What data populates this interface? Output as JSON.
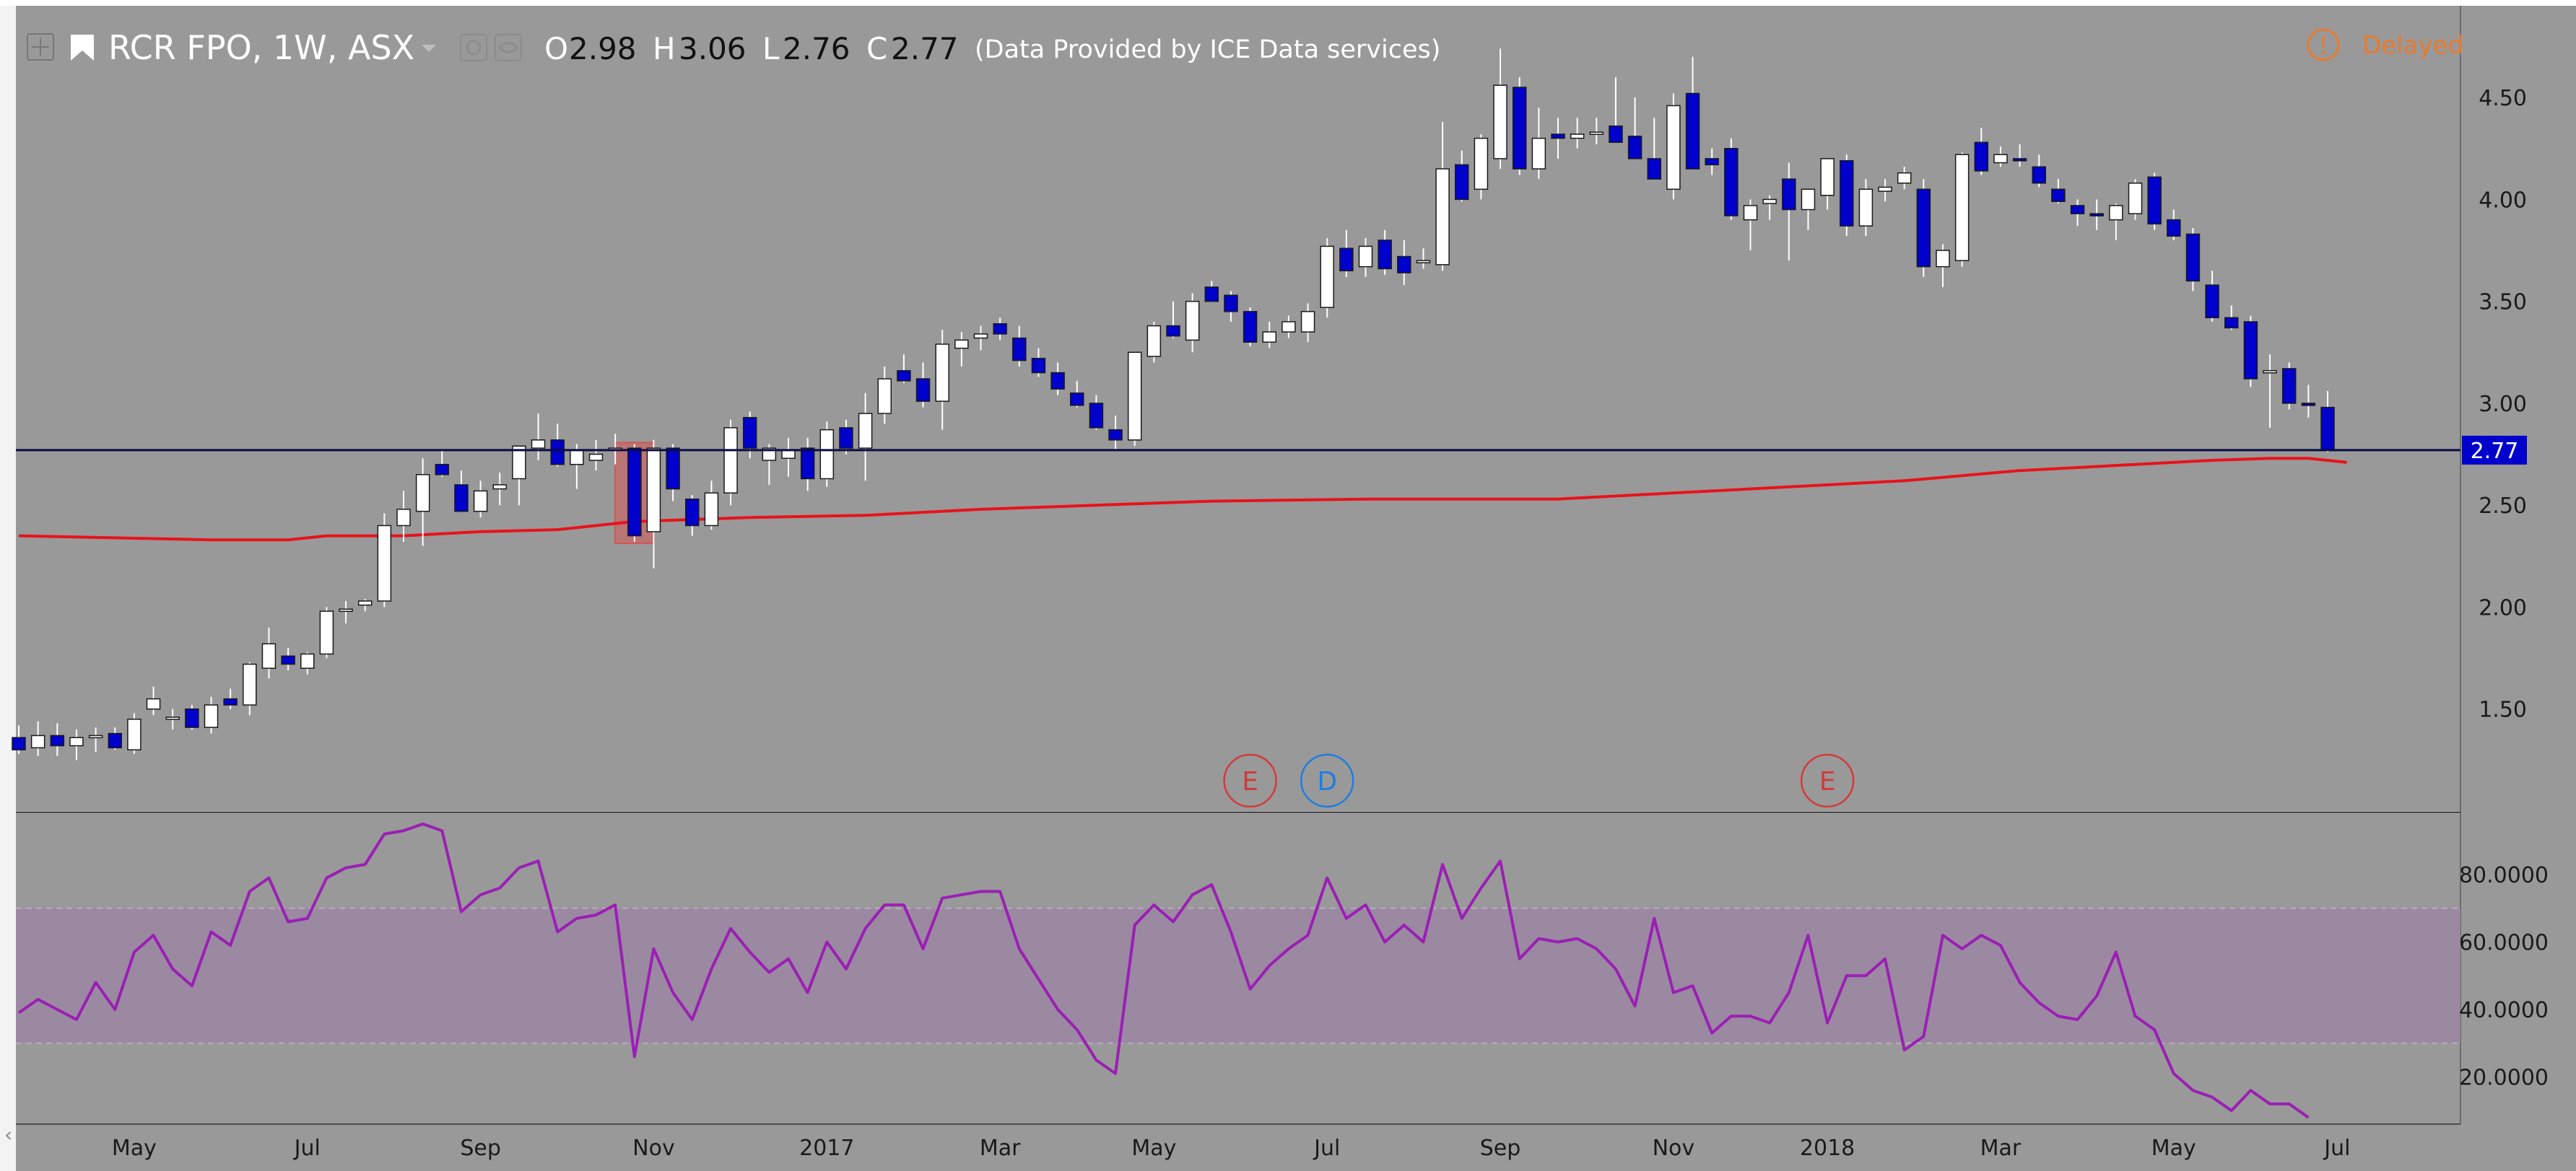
{
  "header": {
    "symbol": "RCR FPO, 1W, ASX",
    "o_label": "O",
    "o_value": "2.98",
    "h_label": "H",
    "h_value": "3.06",
    "l_label": "L",
    "l_value": "2.76",
    "c_label": "C",
    "c_value": "2.77",
    "provider": "(Data Provided by ICE Data services)",
    "delayed_label": "Delayed",
    "icons": [
      "plus-icon",
      "flag-icon",
      "dropdown-caret-icon",
      "settings-icon",
      "eye-icon",
      "warning-icon"
    ]
  },
  "colors": {
    "background": "#999999",
    "up_candle": "#ffffff",
    "down_candle": "#0000cc",
    "ma_line": "#e8121a",
    "rsi_line": "#9b1fb4",
    "rsi_band": "#9b86a3",
    "price_line": "#0b0b45",
    "price_tag": "#0000cc",
    "delayed": "#e87a2e",
    "event_e": "#d23a3a",
    "event_d": "#1e7ee0",
    "highlight": "#d45555"
  },
  "events": [
    {
      "label": "E",
      "index": 64
    },
    {
      "label": "D",
      "index": 68
    },
    {
      "label": "E",
      "index": 94
    }
  ],
  "chart_data": [
    {
      "type": "candlestick",
      "timeframe": "1W",
      "x_tick_labels": [
        "May",
        "Jul",
        "Sep",
        "Nov",
        "2017",
        "Mar",
        "May",
        "Jul",
        "Sep",
        "Nov",
        "2018",
        "Mar",
        "May",
        "Jul"
      ],
      "x_tick_indices": [
        6,
        15,
        24,
        33,
        42,
        51,
        59,
        68,
        77,
        86,
        94,
        103,
        112,
        120.5
      ],
      "y_tick_labels": [
        "4.50",
        "4.00",
        "3.50",
        "3.00",
        "2.50",
        "2.00",
        "1.50"
      ],
      "y_range": [
        1.0,
        4.95
      ],
      "last_price": 2.77,
      "last_price_label": "2.77",
      "highlight_candle_index": 32,
      "ohlc": [
        [
          1.36,
          1.42,
          1.28,
          1.3
        ],
        [
          1.31,
          1.44,
          1.27,
          1.37
        ],
        [
          1.37,
          1.43,
          1.27,
          1.32
        ],
        [
          1.32,
          1.4,
          1.25,
          1.36
        ],
        [
          1.36,
          1.41,
          1.29,
          1.37
        ],
        [
          1.38,
          1.41,
          1.3,
          1.31
        ],
        [
          1.3,
          1.48,
          1.28,
          1.45
        ],
        [
          1.5,
          1.61,
          1.47,
          1.55
        ],
        [
          1.45,
          1.5,
          1.4,
          1.46
        ],
        [
          1.5,
          1.52,
          1.4,
          1.41
        ],
        [
          1.41,
          1.56,
          1.38,
          1.52
        ],
        [
          1.55,
          1.6,
          1.5,
          1.52
        ],
        [
          1.52,
          1.73,
          1.47,
          1.72
        ],
        [
          1.7,
          1.9,
          1.65,
          1.82
        ],
        [
          1.76,
          1.8,
          1.69,
          1.72
        ],
        [
          1.7,
          1.78,
          1.67,
          1.77
        ],
        [
          1.77,
          2.0,
          1.75,
          1.98
        ],
        [
          1.98,
          2.03,
          1.92,
          1.99
        ],
        [
          2.01,
          2.04,
          1.98,
          2.03
        ],
        [
          2.03,
          2.46,
          2.0,
          2.4
        ],
        [
          2.4,
          2.57,
          2.32,
          2.48
        ],
        [
          2.47,
          2.73,
          2.3,
          2.65
        ],
        [
          2.7,
          2.77,
          2.64,
          2.65
        ],
        [
          2.6,
          2.67,
          2.47,
          2.47
        ],
        [
          2.47,
          2.62,
          2.44,
          2.57
        ],
        [
          2.58,
          2.66,
          2.5,
          2.6
        ],
        [
          2.63,
          2.76,
          2.5,
          2.79
        ],
        [
          2.78,
          2.95,
          2.72,
          2.82
        ],
        [
          2.82,
          2.9,
          2.69,
          2.7
        ],
        [
          2.7,
          2.8,
          2.58,
          2.77
        ],
        [
          2.72,
          2.82,
          2.67,
          2.75
        ],
        [
          2.77,
          2.85,
          2.7,
          2.78
        ],
        [
          2.78,
          2.8,
          2.32,
          2.35
        ],
        [
          2.37,
          2.82,
          2.19,
          2.78
        ],
        [
          2.78,
          2.8,
          2.52,
          2.58
        ],
        [
          2.53,
          2.55,
          2.35,
          2.4
        ],
        [
          2.4,
          2.62,
          2.38,
          2.56
        ],
        [
          2.56,
          2.92,
          2.5,
          2.88
        ],
        [
          2.93,
          2.96,
          2.73,
          2.78
        ],
        [
          2.72,
          2.8,
          2.6,
          2.78
        ],
        [
          2.73,
          2.83,
          2.64,
          2.77
        ],
        [
          2.78,
          2.83,
          2.57,
          2.63
        ],
        [
          2.63,
          2.91,
          2.59,
          2.87
        ],
        [
          2.88,
          2.92,
          2.75,
          2.78
        ],
        [
          2.78,
          3.05,
          2.62,
          2.95
        ],
        [
          2.95,
          3.18,
          2.9,
          3.12
        ],
        [
          3.16,
          3.24,
          3.1,
          3.11
        ],
        [
          3.12,
          3.2,
          2.98,
          3.01
        ],
        [
          3.01,
          3.36,
          2.87,
          3.29
        ],
        [
          3.27,
          3.35,
          3.18,
          3.31
        ],
        [
          3.32,
          3.38,
          3.26,
          3.34
        ],
        [
          3.39,
          3.42,
          3.31,
          3.34
        ],
        [
          3.32,
          3.38,
          3.18,
          3.21
        ],
        [
          3.22,
          3.27,
          3.13,
          3.15
        ],
        [
          3.15,
          3.2,
          3.04,
          3.07
        ],
        [
          3.05,
          3.11,
          2.98,
          2.99
        ],
        [
          3.0,
          3.04,
          2.87,
          2.88
        ],
        [
          2.87,
          2.94,
          2.77,
          2.82
        ],
        [
          2.82,
          3.23,
          2.79,
          3.25
        ],
        [
          3.23,
          3.4,
          3.2,
          3.38
        ],
        [
          3.38,
          3.5,
          3.32,
          3.33
        ],
        [
          3.31,
          3.54,
          3.25,
          3.5
        ],
        [
          3.57,
          3.6,
          3.5,
          3.5
        ],
        [
          3.53,
          3.55,
          3.4,
          3.45
        ],
        [
          3.45,
          3.47,
          3.28,
          3.3
        ],
        [
          3.3,
          3.4,
          3.27,
          3.35
        ],
        [
          3.35,
          3.43,
          3.32,
          3.4
        ],
        [
          3.35,
          3.49,
          3.3,
          3.45
        ],
        [
          3.47,
          3.81,
          3.42,
          3.77
        ],
        [
          3.76,
          3.85,
          3.62,
          3.65
        ],
        [
          3.67,
          3.81,
          3.62,
          3.77
        ],
        [
          3.8,
          3.85,
          3.63,
          3.66
        ],
        [
          3.72,
          3.8,
          3.58,
          3.64
        ],
        [
          3.7,
          3.76,
          3.66,
          3.7
        ],
        [
          3.68,
          4.38,
          3.65,
          4.15
        ],
        [
          4.17,
          4.24,
          3.99,
          4.0
        ],
        [
          4.05,
          4.32,
          4.0,
          4.3
        ],
        [
          4.2,
          4.74,
          4.15,
          4.56
        ],
        [
          4.55,
          4.6,
          4.12,
          4.15
        ],
        [
          4.15,
          4.45,
          4.1,
          4.3
        ],
        [
          4.32,
          4.4,
          4.2,
          4.3
        ],
        [
          4.3,
          4.4,
          4.25,
          4.32
        ],
        [
          4.32,
          4.4,
          4.27,
          4.33
        ],
        [
          4.36,
          4.6,
          4.28,
          4.28
        ],
        [
          4.31,
          4.5,
          4.2,
          4.2
        ],
        [
          4.2,
          4.4,
          4.11,
          4.1
        ],
        [
          4.05,
          4.52,
          4.0,
          4.46
        ],
        [
          4.52,
          4.7,
          4.15,
          4.15
        ],
        [
          4.2,
          4.25,
          4.12,
          4.17
        ],
        [
          4.25,
          4.3,
          3.9,
          3.92
        ],
        [
          3.9,
          4.0,
          3.75,
          3.97
        ],
        [
          3.98,
          4.02,
          3.9,
          4.0
        ],
        [
          4.1,
          4.18,
          3.7,
          3.95
        ],
        [
          3.95,
          4.05,
          3.85,
          4.05
        ],
        [
          4.02,
          4.2,
          3.95,
          4.2
        ],
        [
          4.19,
          4.22,
          3.82,
          3.87
        ],
        [
          3.87,
          4.1,
          3.82,
          4.05
        ],
        [
          4.04,
          4.1,
          3.99,
          4.06
        ],
        [
          4.08,
          4.16,
          4.05,
          4.13
        ],
        [
          4.05,
          4.1,
          3.62,
          3.67
        ],
        [
          3.67,
          3.78,
          3.57,
          3.75
        ],
        [
          3.7,
          4.23,
          3.67,
          4.22
        ],
        [
          4.28,
          4.35,
          4.12,
          4.14
        ],
        [
          4.18,
          4.26,
          4.16,
          4.22
        ],
        [
          4.2,
          4.27,
          4.16,
          4.19
        ],
        [
          4.16,
          4.22,
          4.06,
          4.08
        ],
        [
          4.05,
          4.1,
          3.98,
          3.99
        ],
        [
          3.97,
          4.0,
          3.87,
          3.93
        ],
        [
          3.93,
          4.0,
          3.85,
          3.92
        ],
        [
          3.9,
          3.98,
          3.8,
          3.97
        ],
        [
          3.93,
          4.1,
          3.9,
          4.08
        ],
        [
          4.11,
          4.13,
          3.85,
          3.88
        ],
        [
          3.9,
          3.95,
          3.8,
          3.82
        ],
        [
          3.83,
          3.86,
          3.55,
          3.6
        ],
        [
          3.58,
          3.65,
          3.4,
          3.42
        ],
        [
          3.42,
          3.48,
          3.36,
          3.37
        ],
        [
          3.4,
          3.43,
          3.08,
          3.12
        ],
        [
          3.15,
          3.24,
          2.88,
          3.16
        ],
        [
          3.17,
          3.2,
          2.97,
          3.0
        ],
        [
          3.0,
          3.09,
          2.93,
          2.99
        ],
        [
          2.98,
          3.06,
          2.76,
          2.77
        ]
      ],
      "moving_average": [
        [
          0,
          2.35
        ],
        [
          10,
          2.33
        ],
        [
          14,
          2.33
        ],
        [
          16,
          2.35
        ],
        [
          20,
          2.35
        ],
        [
          24,
          2.37
        ],
        [
          28,
          2.38
        ],
        [
          32,
          2.42
        ],
        [
          38,
          2.44
        ],
        [
          44,
          2.45
        ],
        [
          50,
          2.48
        ],
        [
          56,
          2.5
        ],
        [
          62,
          2.52
        ],
        [
          70,
          2.53
        ],
        [
          80,
          2.53
        ],
        [
          86,
          2.56
        ],
        [
          92,
          2.59
        ],
        [
          98,
          2.62
        ],
        [
          104,
          2.67
        ],
        [
          110,
          2.7
        ],
        [
          114,
          2.72
        ],
        [
          117,
          2.73
        ],
        [
          119,
          2.73
        ],
        [
          121,
          2.71
        ]
      ]
    },
    {
      "type": "line",
      "indicator": "RSI",
      "y_tick_labels": [
        "80.0000",
        "60.0000",
        "40.0000",
        "20.0000"
      ],
      "y_range": [
        6,
        98
      ],
      "band": [
        30,
        70
      ],
      "values": [
        39,
        43,
        40,
        37,
        48,
        40,
        57,
        62,
        52,
        47,
        63,
        59,
        75,
        79,
        66,
        67,
        79,
        82,
        83,
        92,
        93,
        95,
        93,
        69,
        74,
        76,
        82,
        84,
        63,
        67,
        68,
        71,
        26,
        58,
        45,
        37,
        52,
        64,
        57,
        51,
        55,
        45,
        60,
        52,
        64,
        71,
        71,
        58,
        73,
        74,
        75,
        75,
        58,
        49,
        40,
        34,
        25,
        21,
        65,
        71,
        66,
        74,
        77,
        63,
        46,
        53,
        58,
        62,
        79,
        67,
        71,
        60,
        65,
        60,
        83,
        67,
        76,
        84,
        55,
        61,
        60,
        61,
        58,
        52,
        41,
        67,
        45,
        47,
        33,
        38,
        38,
        36,
        45,
        62,
        36,
        50,
        50,
        55,
        28,
        32,
        62,
        58,
        62,
        59,
        48,
        42,
        38,
        37,
        44,
        57,
        38,
        34,
        21,
        16,
        14,
        10,
        16,
        12,
        12,
        8
      ]
    }
  ]
}
